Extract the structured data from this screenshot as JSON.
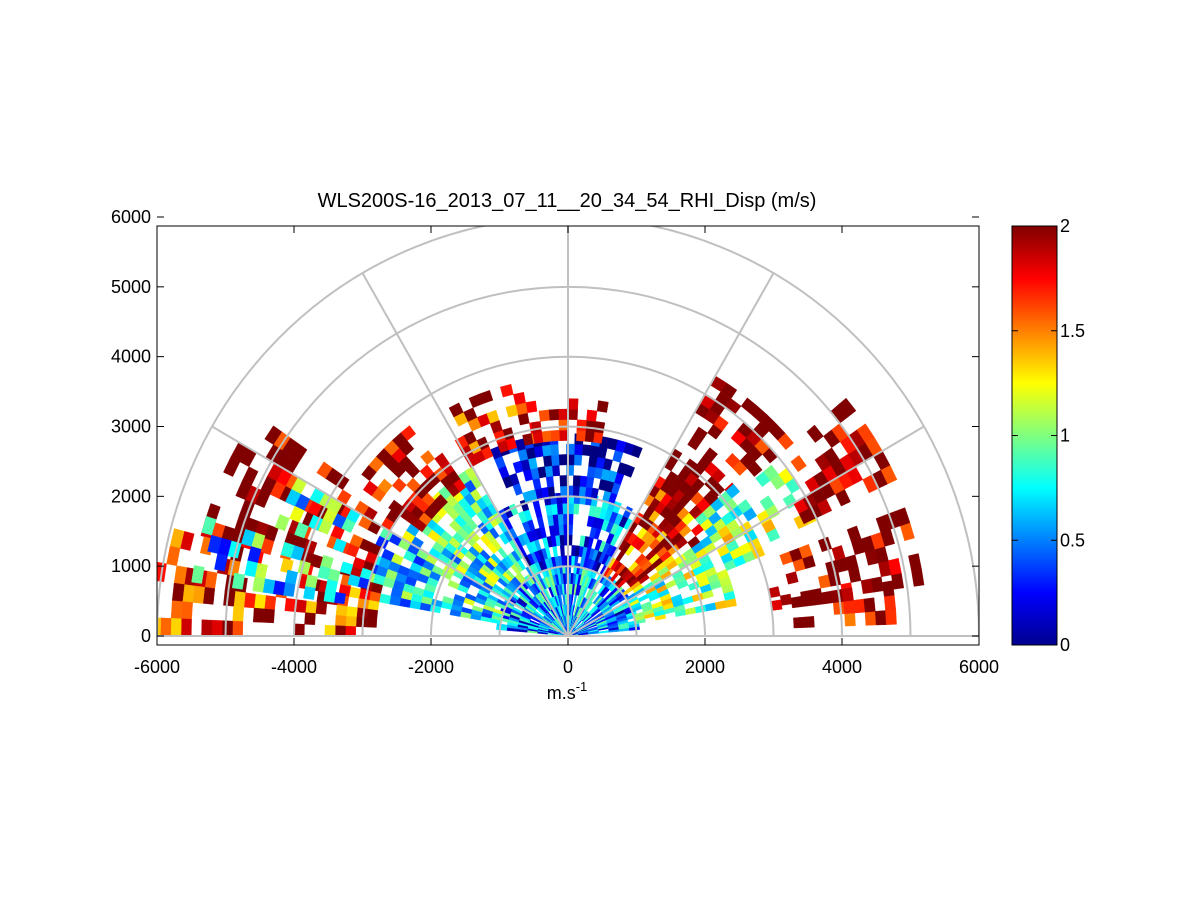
{
  "chart_data": {
    "type": "heatmap",
    "subtype": "polar-rhi",
    "title": "WLS200S-16_2013_07_11__20_34_54_RHI_Disp (m/s)",
    "xlabel": "m.s",
    "xlabel_sup": "-1",
    "ylabel": "",
    "xlim": [
      -6000,
      6000
    ],
    "ylim": [
      0,
      6000
    ],
    "xticks": [
      "-6000",
      "-4000",
      "-2000",
      "0",
      "2000",
      "4000",
      "6000"
    ],
    "yticks": [
      "0",
      "1000",
      "2000",
      "3000",
      "4000",
      "5000",
      "6000"
    ],
    "xtick_values": [
      -6000,
      -4000,
      -2000,
      0,
      2000,
      4000,
      6000
    ],
    "ytick_values": [
      0,
      1000,
      2000,
      3000,
      4000,
      5000,
      6000
    ],
    "polar_grid": {
      "range_rings": [
        1000,
        2000,
        3000,
        4000,
        5000,
        6000
      ],
      "spokes_deg": [
        0,
        30,
        60,
        90,
        120,
        150,
        180
      ]
    },
    "colorbar": {
      "colormap": "jet",
      "clim": [
        0,
        2
      ],
      "tick_values": [
        0,
        0.5,
        1,
        1.5,
        2
      ],
      "tick_labels": [
        "0",
        "0.5",
        "1",
        "1.5",
        "2"
      ]
    },
    "sectors": [
      {
        "az_from": 5,
        "az_to": 40,
        "r_from": 0,
        "r_to": 1000,
        "value": 0.5
      },
      {
        "az_from": 40,
        "az_to": 140,
        "r_from": 0,
        "r_to": 1000,
        "value": 0.6
      },
      {
        "az_from": 140,
        "az_to": 175,
        "r_from": 0,
        "r_to": 1000,
        "value": 0.55
      },
      {
        "az_from": 10,
        "az_to": 35,
        "r_from": 1000,
        "r_to": 2500,
        "value": 1.0
      },
      {
        "az_from": 35,
        "az_to": 60,
        "r_from": 1000,
        "r_to": 2500,
        "value": 1.7
      },
      {
        "az_from": 60,
        "az_to": 120,
        "r_from": 1000,
        "r_to": 2000,
        "value": 0.45
      },
      {
        "az_from": 68,
        "az_to": 112,
        "r_from": 2000,
        "r_to": 2800,
        "value": 0.15
      },
      {
        "az_from": 120,
        "az_to": 150,
        "r_from": 1000,
        "r_to": 2800,
        "value": 0.85
      },
      {
        "az_from": 150,
        "az_to": 170,
        "r_from": 1000,
        "r_to": 3000,
        "value": 0.75
      },
      {
        "az_from": 40,
        "az_to": 60,
        "r_from": 2500,
        "r_to": 4200,
        "value": 2.0
      },
      {
        "az_from": 22,
        "az_to": 40,
        "r_from": 2500,
        "r_to": 4000,
        "value": 1.0
      },
      {
        "az_from": 25,
        "az_to": 38,
        "r_from": 3800,
        "r_to": 5200,
        "value": 2.0
      },
      {
        "az_from": 8,
        "az_to": 20,
        "r_from": 3000,
        "r_to": 5200,
        "value": 2.0
      },
      {
        "az_from": 2,
        "az_to": 8,
        "r_from": 3000,
        "r_to": 4800,
        "value": 1.95
      },
      {
        "az_from": 125,
        "az_to": 145,
        "r_from": 2600,
        "r_to": 3800,
        "value": 1.9
      },
      {
        "az_from": 145,
        "az_to": 165,
        "r_from": 3000,
        "r_to": 5500,
        "value": 2.0
      },
      {
        "az_from": 150,
        "az_to": 158,
        "r_from": 3500,
        "r_to": 4500,
        "value": 0.8
      },
      {
        "az_from": 165,
        "az_to": 178,
        "r_from": 2800,
        "r_to": 6000,
        "value": 1.75
      },
      {
        "az_from": 162,
        "az_to": 170,
        "r_from": 3000,
        "r_to": 5500,
        "value": 0.7
      },
      {
        "az_from": 98,
        "az_to": 120,
        "r_from": 2800,
        "r_to": 3700,
        "value": 1.8
      },
      {
        "az_from": 80,
        "az_to": 98,
        "r_from": 2800,
        "r_to": 3300,
        "value": 1.95
      }
    ]
  }
}
